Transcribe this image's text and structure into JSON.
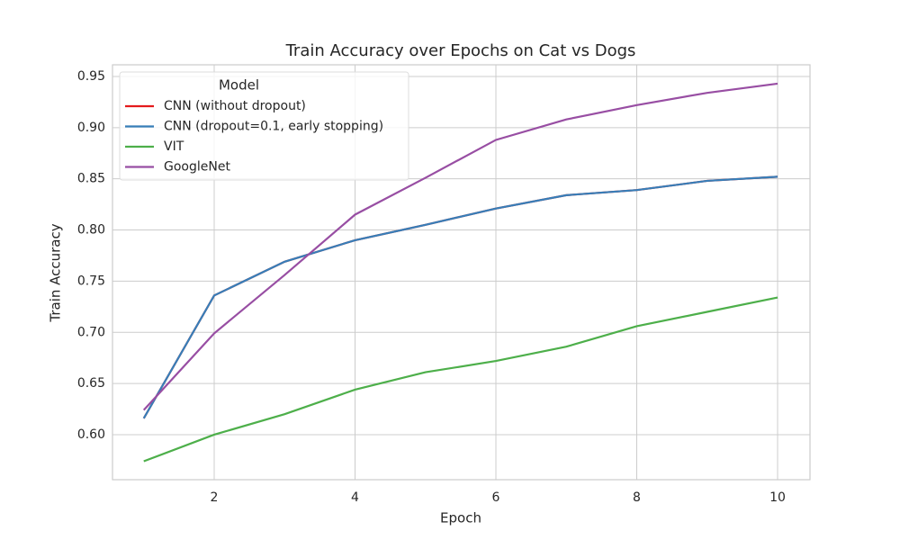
{
  "chart_data": {
    "type": "line",
    "title": "Train Accuracy over Epochs on Cat vs Dogs",
    "xlabel": "Epoch",
    "ylabel": "Train Accuracy",
    "x": [
      1,
      2,
      3,
      4,
      5,
      6,
      7,
      8,
      9,
      10
    ],
    "series": [
      {
        "name": "CNN (without dropout)",
        "color": "#e41a1c",
        "values": [
          0.616,
          0.736,
          0.769,
          0.79,
          0.805,
          0.821,
          0.834,
          0.839,
          0.848,
          0.852
        ]
      },
      {
        "name": "CNN (dropout=0.1, early stopping)",
        "color": "#377eb8",
        "values": [
          0.616,
          0.736,
          0.769,
          0.79,
          0.805,
          0.821,
          0.834,
          0.839,
          0.848,
          0.852
        ]
      },
      {
        "name": "VIT",
        "color": "#4daf4a",
        "values": [
          0.574,
          0.6,
          0.62,
          0.644,
          0.661,
          0.672,
          0.686,
          0.706,
          0.72,
          0.734
        ]
      },
      {
        "name": "GoogleNet",
        "color": "#984ea3",
        "values": [
          0.624,
          0.699,
          0.756,
          0.815,
          0.851,
          0.888,
          0.908,
          0.922,
          0.934,
          0.943
        ]
      }
    ],
    "legend_title": "Model",
    "legend_position": "upper left",
    "xlim": [
      0.556,
      10.46
    ],
    "ylim": [
      0.556,
      0.9614
    ],
    "xticks": [
      2,
      4,
      6,
      8,
      10
    ],
    "yticks": [
      {
        "value": 0.6,
        "label": "0.60"
      },
      {
        "value": 0.65,
        "label": "0.65"
      },
      {
        "value": 0.7,
        "label": "0.70"
      },
      {
        "value": 0.75,
        "label": "0.75"
      },
      {
        "value": 0.8,
        "label": "0.80"
      },
      {
        "value": 0.85,
        "label": "0.85"
      },
      {
        "value": 0.9,
        "label": "0.90"
      },
      {
        "value": 0.95,
        "label": "0.95"
      }
    ],
    "grid": true
  }
}
